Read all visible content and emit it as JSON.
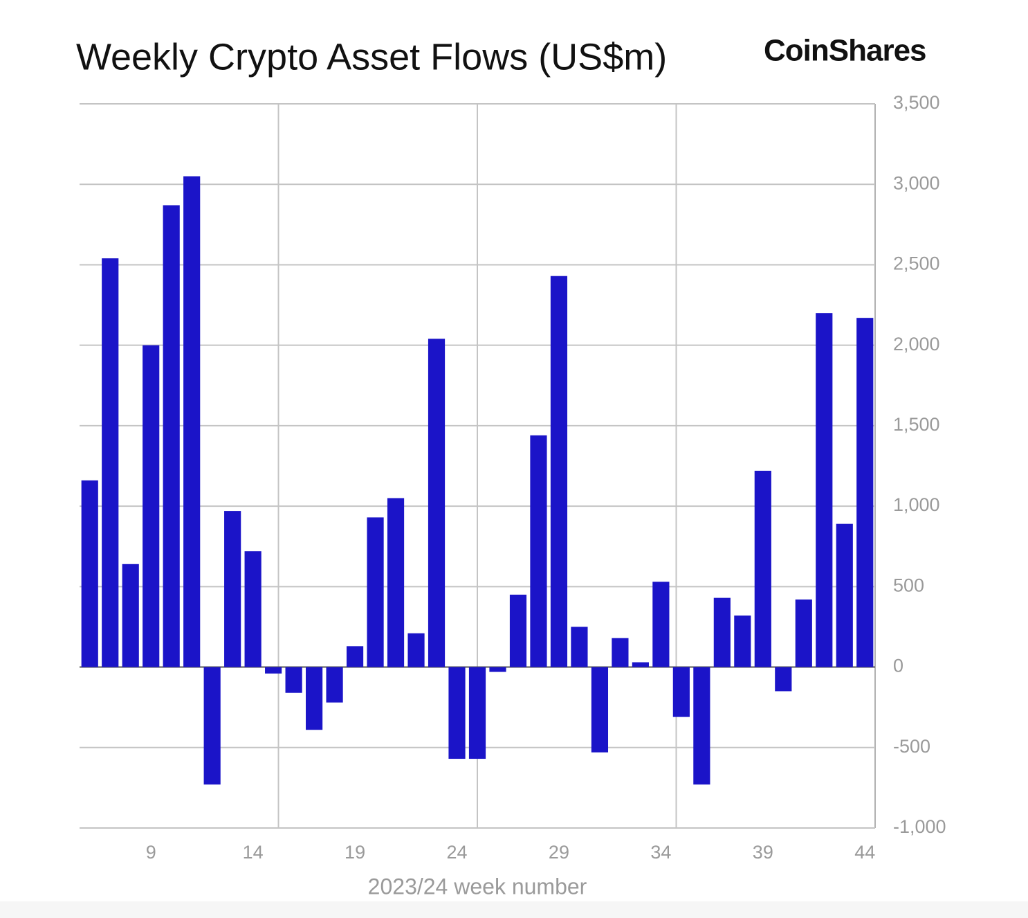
{
  "chart_data": {
    "type": "bar",
    "title": "Weekly Crypto Asset Flows (US$m)",
    "brand": "CoinShares",
    "x_label": "2023/24 week number",
    "x": [
      6,
      7,
      8,
      9,
      10,
      11,
      12,
      13,
      14,
      15,
      16,
      17,
      18,
      19,
      20,
      21,
      22,
      23,
      24,
      25,
      26,
      27,
      28,
      29,
      30,
      31,
      32,
      33,
      34,
      35,
      36,
      37,
      38,
      39,
      40,
      41,
      42,
      43,
      44
    ],
    "values": [
      1160,
      2540,
      640,
      2000,
      2870,
      3050,
      -730,
      970,
      720,
      -40,
      -160,
      -390,
      -220,
      130,
      930,
      1050,
      210,
      2040,
      -570,
      -570,
      -30,
      450,
      1440,
      2430,
      250,
      -530,
      180,
      30,
      530,
      -310,
      -730,
      430,
      320,
      1220,
      -150,
      420,
      2200,
      890,
      2170
    ],
    "color": "#1b14c8",
    "xlim": [
      5.5,
      44.5
    ],
    "xticks": [
      9,
      14,
      19,
      24,
      29,
      34,
      39,
      44
    ],
    "ylim": [
      -1000,
      3500
    ],
    "yticks": [
      {
        "value": -1000,
        "label": "-1,000"
      },
      -500,
      0,
      500,
      {
        "value": 1000,
        "label": "1,000"
      },
      {
        "value": 1500,
        "label": "1,500"
      },
      {
        "value": 2000,
        "label": "2,000"
      },
      {
        "value": 2500,
        "label": "2,500"
      },
      {
        "value": 3000,
        "label": "3,000"
      },
      {
        "value": 3500,
        "label": "3,500"
      }
    ],
    "grid": true,
    "y_axis_side": "right"
  }
}
